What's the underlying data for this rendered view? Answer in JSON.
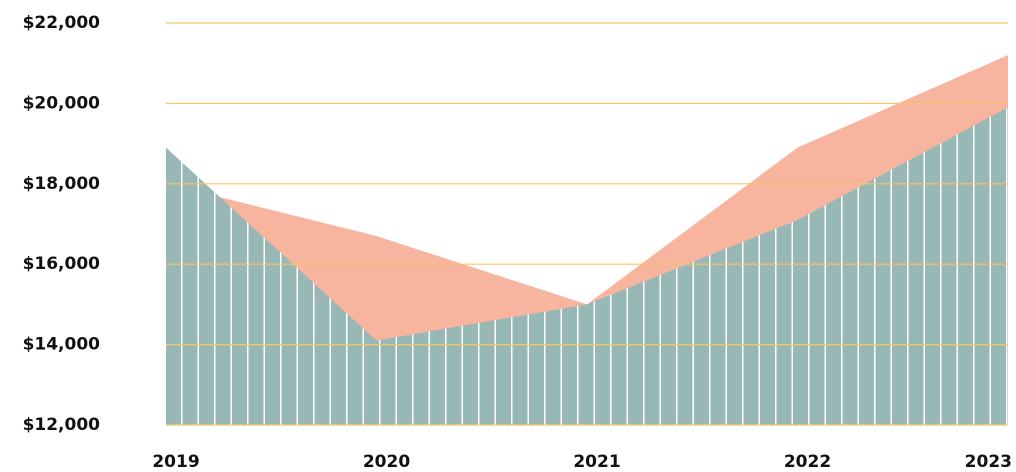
{
  "chart_data": {
    "type": "area",
    "categories": [
      "2019",
      "2020",
      "2021",
      "2022",
      "2023"
    ],
    "series": [
      {
        "color": "#f7b49f",
        "values": [
          18000,
          16700,
          15000,
          18900,
          21200
        ]
      },
      {
        "color": "#97b8b4",
        "values": [
          18900,
          14100,
          15000,
          17100,
          19900
        ]
      }
    ],
    "ylim": [
      12000,
      22000
    ],
    "yticks": [
      {
        "value": 12000,
        "label": "$12,000"
      },
      {
        "value": 14000,
        "label": "$14,000"
      },
      {
        "value": 16000,
        "label": "$16,000"
      },
      {
        "value": 18000,
        "label": "$18,000"
      },
      {
        "value": 20000,
        "label": "$20,000"
      },
      {
        "value": 22000,
        "label": "$22,000"
      }
    ],
    "grid": true,
    "grid_color": "#f5c66a"
  }
}
